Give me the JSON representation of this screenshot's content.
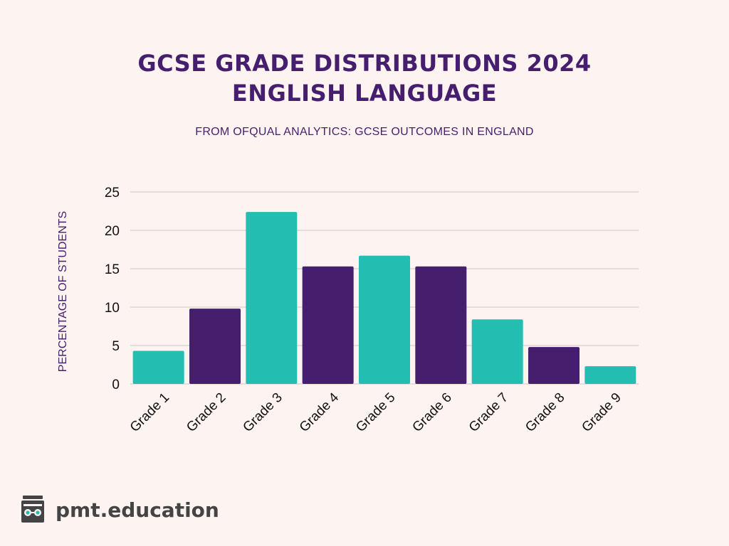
{
  "title_line1": "GCSE GRADE DISTRIBUTIONS 2024",
  "title_line2": "ENGLISH LANGUAGE",
  "subtitle": "FROM OFQUAL ANALYTICS: GCSE OUTCOMES IN ENGLAND",
  "brand": "pmt.education",
  "colors": {
    "teal": "#23beb1",
    "purple": "#461e6e",
    "text": "#461e6e",
    "grid": "#cfc4c4"
  },
  "chart_data": {
    "type": "bar",
    "title": "GCSE GRADE DISTRIBUTIONS 2024 ENGLISH LANGUAGE",
    "subtitle": "FROM OFQUAL ANALYTICS: GCSE OUTCOMES IN ENGLAND",
    "xlabel": "",
    "ylabel": "PERCENTAGE OF STUDENTS",
    "categories": [
      "Grade 1",
      "Grade 2",
      "Grade 3",
      "Grade 4",
      "Grade 5",
      "Grade 6",
      "Grade 7",
      "Grade 8",
      "Grade 9"
    ],
    "values": [
      4.3,
      9.8,
      22.4,
      15.3,
      16.7,
      15.3,
      8.4,
      4.8,
      2.3
    ],
    "bar_colors": [
      "#23beb1",
      "#461e6e",
      "#23beb1",
      "#461e6e",
      "#23beb1",
      "#461e6e",
      "#23beb1",
      "#461e6e",
      "#23beb1"
    ],
    "ylim": [
      0,
      25
    ],
    "yticks": [
      0,
      5,
      10,
      15,
      20,
      25
    ],
    "grid": true,
    "legend": "none"
  }
}
